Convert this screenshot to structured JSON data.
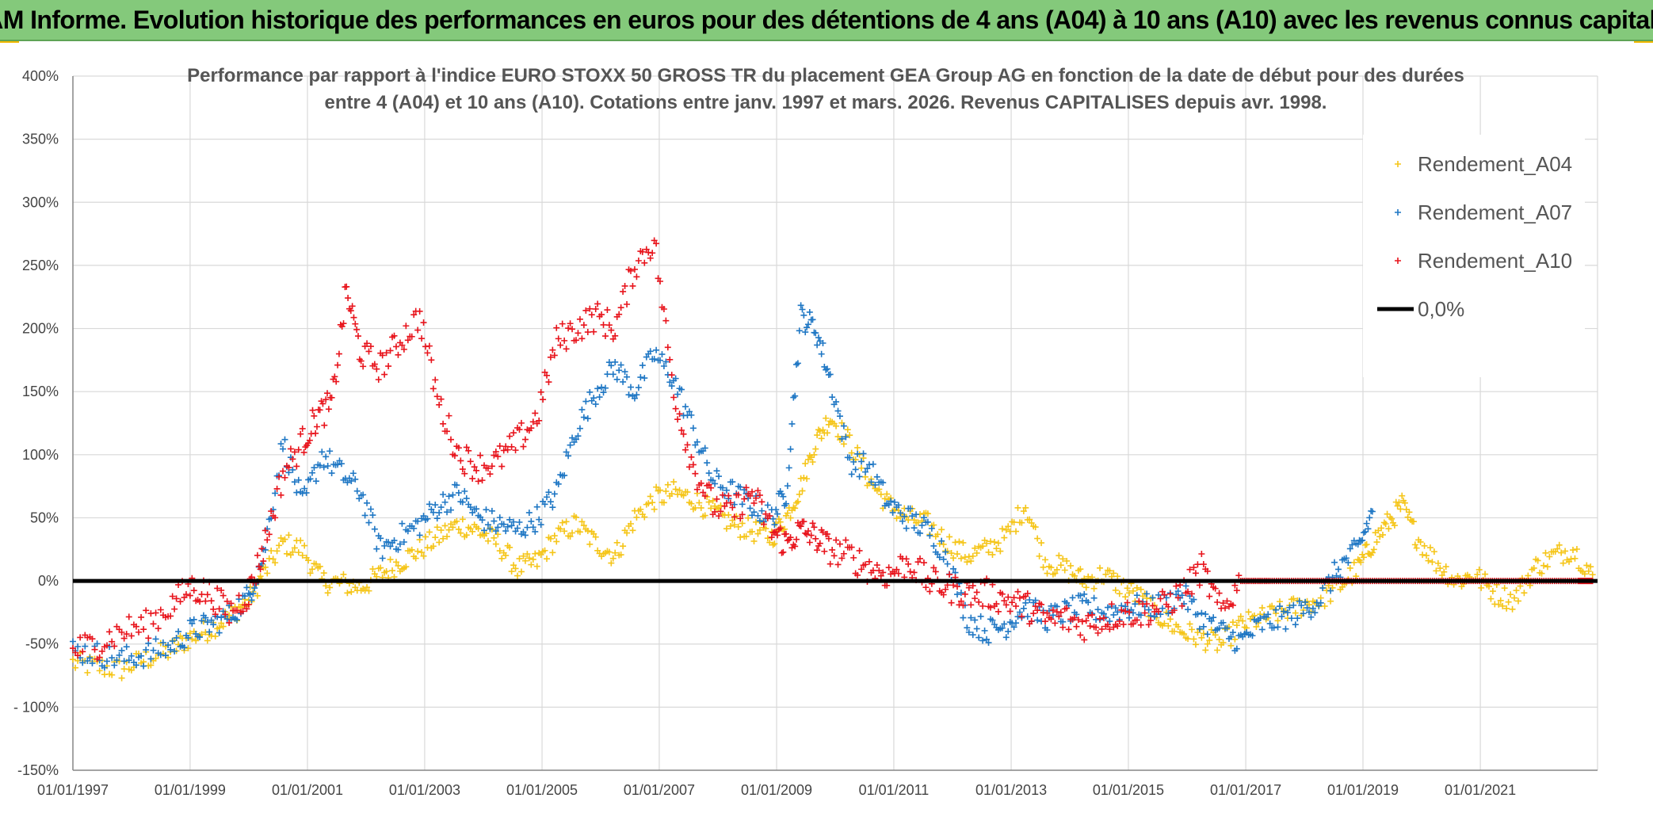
{
  "banner": {
    "title": "ADAM Informe. Evolution historique des performances en euros pour des détentions de 4 ans (A04) à 10 ans (A10) avec les revenus connus capitalisés"
  },
  "colors": {
    "banner_bg": "#84c97b",
    "A04": "#f5c518",
    "A07": "#1f77c4",
    "A10": "#e8141c",
    "zero_line": "#000000"
  },
  "chart_data": {
    "type": "scatter",
    "title_line1": "Performance par rapport à l'indice EURO STOXX 50 GROSS TR  du placement GEA Group AG en fonction de la date de début pour des durées",
    "title_line2": "entre 4 (A04) et 10 ans (A10). Cotations entre janv. 1997 et mars. 2026. Revenus CAPITALISES depuis avr. 1998.",
    "xlim": [
      "1997-01-01",
      "2023-01-01"
    ],
    "ylim": [
      -150,
      400
    ],
    "y_ticks": [
      {
        "value": 400,
        "label": "400%"
      },
      {
        "value": 350,
        "label": "350%"
      },
      {
        "value": 300,
        "label": "300%"
      },
      {
        "value": 250,
        "label": "250%"
      },
      {
        "value": 200,
        "label": "200%"
      },
      {
        "value": 150,
        "label": "150%"
      },
      {
        "value": 100,
        "label": "100%"
      },
      {
        "value": 50,
        "label": "50%"
      },
      {
        "value": 0,
        "label": "0%"
      },
      {
        "value": -50,
        "label": "-50%"
      },
      {
        "value": -100,
        "label": "- 100%"
      },
      {
        "value": -150,
        "label": "-150%"
      }
    ],
    "x_ticks": [
      {
        "value": "1997-01-01",
        "label": "01/01/1997"
      },
      {
        "value": "1999-01-01",
        "label": "01/01/1999"
      },
      {
        "value": "2001-01-01",
        "label": "01/01/2001"
      },
      {
        "value": "2003-01-01",
        "label": "01/01/2003"
      },
      {
        "value": "2005-01-01",
        "label": "01/01/2005"
      },
      {
        "value": "2007-01-01",
        "label": "01/01/2007"
      },
      {
        "value": "2009-01-01",
        "label": "01/01/2009"
      },
      {
        "value": "2011-01-01",
        "label": "01/01/2011"
      },
      {
        "value": "2013-01-01",
        "label": "01/01/2013"
      },
      {
        "value": "2015-01-01",
        "label": "01/01/2015"
      },
      {
        "value": "2017-01-01",
        "label": "01/01/2017"
      },
      {
        "value": "2019-01-01",
        "label": "01/01/2019"
      },
      {
        "value": "2021-01-01",
        "label": "01/01/2021"
      }
    ],
    "grid": true,
    "legend_position": "top-right",
    "series": [
      {
        "name": "Rendement_A04",
        "key": "A04",
        "x": [
          "1997-01-01",
          "1997-06-01",
          "1997-11-01",
          "1998-04-01",
          "1998-09-01",
          "1999-01-01",
          "1999-05-01",
          "1999-09-01",
          "2000-01-01",
          "2000-04-01",
          "2000-08-01",
          "2000-12-01",
          "2001-04-01",
          "2001-08-01",
          "2001-12-01",
          "2002-04-01",
          "2002-08-01",
          "2002-12-01",
          "2003-04-01",
          "2003-08-01",
          "2003-12-01",
          "2004-04-01",
          "2004-08-01",
          "2004-12-01",
          "2005-04-01",
          "2005-08-01",
          "2005-12-01",
          "2006-04-01",
          "2006-08-01",
          "2006-12-01",
          "2007-04-01",
          "2007-08-01",
          "2007-12-01",
          "2008-04-01",
          "2008-08-01",
          "2008-12-01",
          "2009-03-01",
          "2009-06-01",
          "2009-09-01",
          "2009-12-01",
          "2010-04-01",
          "2010-08-01",
          "2010-12-01",
          "2011-04-01",
          "2011-08-01",
          "2011-12-01",
          "2012-04-01",
          "2012-08-01",
          "2012-12-01",
          "2013-04-01",
          "2013-08-01",
          "2013-12-01",
          "2014-04-01",
          "2014-08-01",
          "2014-12-01",
          "2015-04-01",
          "2015-08-01",
          "2015-12-01",
          "2016-04-01",
          "2016-08-01",
          "2016-12-01",
          "2017-04-01",
          "2017-08-01",
          "2017-12-01",
          "2018-04-01",
          "2018-08-01",
          "2018-12-01",
          "2019-03-01",
          "2019-06-01",
          "2019-09-01",
          "2019-12-01",
          "2020-04-01",
          "2020-08-01",
          "2020-12-01",
          "2021-04-01",
          "2021-08-01",
          "2021-12-01",
          "2022-04-01",
          "2022-08-01",
          "2022-12-01"
        ],
        "y": [
          -65,
          -68,
          -70,
          -62,
          -55,
          -45,
          -38,
          -28,
          -15,
          5,
          30,
          25,
          0,
          -2,
          -5,
          5,
          15,
          25,
          35,
          45,
          40,
          30,
          10,
          15,
          35,
          45,
          30,
          20,
          50,
          65,
          70,
          65,
          55,
          45,
          40,
          35,
          50,
          75,
          110,
          130,
          110,
          80,
          60,
          50,
          45,
          30,
          20,
          25,
          35,
          60,
          15,
          10,
          0,
          5,
          -5,
          -15,
          -30,
          -40,
          -45,
          -50,
          -35,
          -30,
          -25,
          -20,
          -15,
          -5,
          10,
          30,
          45,
          60,
          35,
          15,
          0,
          5,
          -10,
          -15,
          10,
          20,
          25,
          5
        ],
        "spread": 9
      },
      {
        "name": "Rendement_A07",
        "key": "A07",
        "x": [
          "1997-01-01",
          "1997-06-01",
          "1997-11-01",
          "1998-04-01",
          "1998-09-01",
          "1999-01-01",
          "1999-05-01",
          "1999-09-01",
          "2000-01-01",
          "2000-04-01",
          "2000-08-01",
          "2000-12-01",
          "2001-04-01",
          "2001-08-01",
          "2001-12-01",
          "2002-04-01",
          "2002-08-01",
          "2002-12-01",
          "2003-04-01",
          "2003-08-01",
          "2003-12-01",
          "2004-04-01",
          "2004-08-01",
          "2004-12-01",
          "2005-04-01",
          "2005-08-01",
          "2005-12-01",
          "2006-04-01",
          "2006-08-01",
          "2006-12-01",
          "2007-04-01",
          "2007-08-01",
          "2007-12-01",
          "2008-04-01",
          "2008-08-01",
          "2008-12-01",
          "2009-03-01",
          "2009-06-01",
          "2009-09-01",
          "2009-12-01",
          "2010-04-01",
          "2010-08-01",
          "2010-12-01",
          "2011-04-01",
          "2011-08-01",
          "2011-12-01",
          "2012-04-01",
          "2012-08-01",
          "2012-12-01",
          "2013-04-01",
          "2013-08-01",
          "2013-12-01",
          "2014-04-01",
          "2014-08-01",
          "2014-12-01",
          "2015-04-01",
          "2015-08-01",
          "2015-12-01",
          "2016-04-01",
          "2016-08-01",
          "2016-12-01",
          "2017-04-01",
          "2017-08-01",
          "2017-12-01",
          "2018-04-01",
          "2018-08-01",
          "2018-12-01",
          "2019-03-01"
        ],
        "y": [
          -55,
          -58,
          -62,
          -58,
          -52,
          -40,
          -35,
          -28,
          -12,
          20,
          110,
          60,
          100,
          85,
          70,
          25,
          35,
          45,
          60,
          70,
          50,
          45,
          40,
          50,
          70,
          120,
          150,
          170,
          150,
          180,
          160,
          120,
          80,
          70,
          60,
          50,
          70,
          210,
          200,
          160,
          95,
          90,
          60,
          50,
          40,
          20,
          -30,
          -40,
          -35,
          -20,
          -30,
          -25,
          -20,
          -25,
          -22,
          -20,
          -20,
          -10,
          -30,
          -40,
          -48,
          -35,
          -30,
          -25,
          -15,
          10,
          25,
          55
        ],
        "spread": 10
      },
      {
        "name": "Rendement_A10",
        "key": "A10",
        "x": [
          "1997-01-01",
          "1997-06-01",
          "1997-11-01",
          "1998-04-01",
          "1998-09-01",
          "1999-01-01",
          "1999-05-01",
          "1999-09-01",
          "2000-01-01",
          "2000-04-01",
          "2000-08-01",
          "2000-12-01",
          "2001-03-01",
          "2001-06-01",
          "2001-09-01",
          "2001-12-01",
          "2002-04-01",
          "2002-08-01",
          "2002-12-01",
          "2003-04-01",
          "2003-08-01",
          "2003-12-01",
          "2004-04-01",
          "2004-08-01",
          "2004-12-01",
          "2005-04-01",
          "2005-08-01",
          "2005-12-01",
          "2006-04-01",
          "2006-08-01",
          "2006-12-01",
          "2007-04-01",
          "2007-08-01",
          "2007-12-01",
          "2008-04-01",
          "2008-08-01",
          "2008-12-01",
          "2009-03-01",
          "2009-06-01",
          "2009-09-01",
          "2009-12-01",
          "2010-04-01",
          "2010-08-01",
          "2010-12-01",
          "2011-04-01",
          "2011-08-01",
          "2011-12-01",
          "2012-04-01",
          "2012-08-01",
          "2012-12-01",
          "2013-04-01",
          "2013-08-01",
          "2013-12-01",
          "2014-04-01",
          "2014-08-01",
          "2014-12-01",
          "2015-04-01",
          "2015-08-01",
          "2015-12-01",
          "2016-04-01",
          "2016-08-01",
          "2016-12-01",
          "2017-06-01",
          "2018-01-01",
          "2018-08-01",
          "2019-03-01",
          "2019-10-01",
          "2020-05-01",
          "2020-12-01",
          "2021-07-01",
          "2022-02-01",
          "2022-09-01",
          "2022-12-01"
        ],
        "y": [
          -55,
          -50,
          -40,
          -35,
          -20,
          -5,
          -10,
          -25,
          -10,
          25,
          85,
          110,
          130,
          140,
          230,
          180,
          170,
          190,
          210,
          140,
          100,
          90,
          95,
          110,
          130,
          190,
          200,
          210,
          200,
          250,
          270,
          150,
          90,
          60,
          55,
          70,
          40,
          30,
          40,
          35,
          25,
          20,
          10,
          5,
          15,
          0,
          -5,
          -10,
          -10,
          -15,
          -20,
          -30,
          -30,
          -35,
          -30,
          -25,
          -25,
          -20,
          -10,
          10,
          -25,
          0,
          0,
          0,
          0,
          0,
          0,
          0,
          0,
          0,
          0,
          0,
          0
        ],
        "spread": 12
      }
    ]
  },
  "legend": {
    "items": [
      {
        "label": "Rendement_A04",
        "key": "A04"
      },
      {
        "label": "Rendement_A07",
        "key": "A07"
      },
      {
        "label": "Rendement_A10",
        "key": "A10"
      }
    ],
    "zero_label": "0,0%"
  }
}
